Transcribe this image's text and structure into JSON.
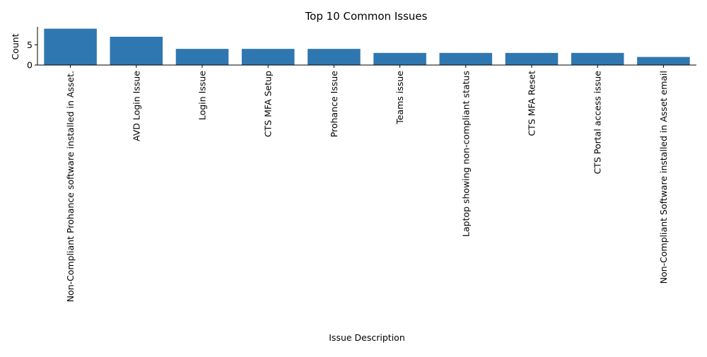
{
  "chart_data": {
    "type": "bar",
    "title": "Top 10 Common Issues",
    "xlabel": "Issue Description",
    "ylabel": "Count",
    "categories": [
      "Non-Compliant Prohance software installed in Asset.",
      "AVD Login Issue",
      "Login Issue",
      "CTS MFA Setup",
      "Prohance Issue",
      "Teams issue",
      "Laptop showing non-compliant status",
      "CTS MFA Reset",
      "CTS Portal access issue",
      "Non-Compliant Software installed in Asset email"
    ],
    "values": [
      9,
      7,
      4,
      4,
      4,
      3,
      3,
      3,
      3,
      2
    ],
    "ylim": [
      0,
      9.45
    ],
    "yticks": [
      0,
      5
    ],
    "grid": false,
    "bar_color": "#2f77b0"
  }
}
